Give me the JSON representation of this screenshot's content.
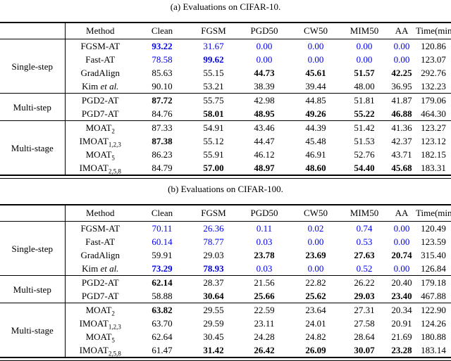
{
  "colors": {
    "highlight_blue": "#0000EE",
    "rule_black": "#000000",
    "background": "#ffffff"
  },
  "tables": [
    {
      "caption": "(a) Evaluations on CIFAR-10.",
      "columns": [
        "Method",
        "Clean",
        "FGSM",
        "PGD50",
        "CW50",
        "MIM50",
        "AA",
        "Time(min)"
      ],
      "groups": [
        {
          "label": "Single-step",
          "rows": [
            {
              "method": {
                "name": "FGSM-AT",
                "italic": "",
                "sub": ""
              },
              "cells": [
                {
                  "v": "93.22",
                  "s": "blue bold"
                },
                {
                  "v": "31.67",
                  "s": "blue"
                },
                {
                  "v": "0.00",
                  "s": "blue"
                },
                {
                  "v": "0.00",
                  "s": "blue"
                },
                {
                  "v": "0.00",
                  "s": "blue"
                },
                {
                  "v": "0.00",
                  "s": "blue"
                },
                {
                  "v": "120.86",
                  "s": ""
                }
              ]
            },
            {
              "method": {
                "name": "Fast-AT",
                "italic": "",
                "sub": ""
              },
              "cells": [
                {
                  "v": "78.58",
                  "s": "blue"
                },
                {
                  "v": "99.62",
                  "s": "blue bold"
                },
                {
                  "v": "0.00",
                  "s": "blue"
                },
                {
                  "v": "0.00",
                  "s": "blue"
                },
                {
                  "v": "0.00",
                  "s": "blue"
                },
                {
                  "v": "0.00",
                  "s": "blue"
                },
                {
                  "v": "123.07",
                  "s": ""
                }
              ]
            },
            {
              "method": {
                "name": "GradAlign",
                "italic": "",
                "sub": ""
              },
              "cells": [
                {
                  "v": "85.63",
                  "s": ""
                },
                {
                  "v": "55.15",
                  "s": ""
                },
                {
                  "v": "44.73",
                  "s": "bold"
                },
                {
                  "v": "45.61",
                  "s": "bold"
                },
                {
                  "v": "51.57",
                  "s": "bold"
                },
                {
                  "v": "42.25",
                  "s": "bold"
                },
                {
                  "v": "292.76",
                  "s": ""
                }
              ]
            },
            {
              "method": {
                "name": "Kim ",
                "italic": "et al.",
                "sub": ""
              },
              "cells": [
                {
                  "v": "90.10",
                  "s": ""
                },
                {
                  "v": "53.21",
                  "s": ""
                },
                {
                  "v": "38.39",
                  "s": ""
                },
                {
                  "v": "39.44",
                  "s": ""
                },
                {
                  "v": "48.00",
                  "s": ""
                },
                {
                  "v": "36.95",
                  "s": ""
                },
                {
                  "v": "132.23",
                  "s": ""
                }
              ]
            }
          ]
        },
        {
          "label": "Multi-step",
          "rows": [
            {
              "method": {
                "name": "PGD2-AT",
                "italic": "",
                "sub": ""
              },
              "cells": [
                {
                  "v": "87.72",
                  "s": "bold"
                },
                {
                  "v": "55.75",
                  "s": ""
                },
                {
                  "v": "42.98",
                  "s": ""
                },
                {
                  "v": "44.85",
                  "s": ""
                },
                {
                  "v": "51.81",
                  "s": ""
                },
                {
                  "v": "41.87",
                  "s": ""
                },
                {
                  "v": "179.06",
                  "s": ""
                }
              ]
            },
            {
              "method": {
                "name": "PGD7-AT",
                "italic": "",
                "sub": ""
              },
              "cells": [
                {
                  "v": "84.76",
                  "s": ""
                },
                {
                  "v": "58.01",
                  "s": "bold"
                },
                {
                  "v": "48.95",
                  "s": "bold"
                },
                {
                  "v": "49.26",
                  "s": "bold"
                },
                {
                  "v": "55.22",
                  "s": "bold"
                },
                {
                  "v": "46.88",
                  "s": "bold"
                },
                {
                  "v": "464.30",
                  "s": ""
                }
              ]
            }
          ]
        },
        {
          "label": "Multi-stage",
          "rows": [
            {
              "method": {
                "name": "MOAT",
                "italic": "",
                "sub": "2"
              },
              "cells": [
                {
                  "v": "87.33",
                  "s": ""
                },
                {
                  "v": "54.91",
                  "s": ""
                },
                {
                  "v": "43.46",
                  "s": ""
                },
                {
                  "v": "44.39",
                  "s": ""
                },
                {
                  "v": "51.42",
                  "s": ""
                },
                {
                  "v": "41.36",
                  "s": ""
                },
                {
                  "v": "123.27",
                  "s": ""
                }
              ]
            },
            {
              "method": {
                "name": "IMOAT",
                "italic": "",
                "sub": "1,2,3"
              },
              "cells": [
                {
                  "v": "87.38",
                  "s": "bold"
                },
                {
                  "v": "55.12",
                  "s": ""
                },
                {
                  "v": "44.47",
                  "s": ""
                },
                {
                  "v": "45.48",
                  "s": ""
                },
                {
                  "v": "51.53",
                  "s": ""
                },
                {
                  "v": "42.37",
                  "s": ""
                },
                {
                  "v": "123.12",
                  "s": ""
                }
              ]
            },
            {
              "method": {
                "name": "MOAT",
                "italic": "",
                "sub": "5"
              },
              "cells": [
                {
                  "v": "86.23",
                  "s": ""
                },
                {
                  "v": "55.91",
                  "s": ""
                },
                {
                  "v": "46.12",
                  "s": ""
                },
                {
                  "v": "46.91",
                  "s": ""
                },
                {
                  "v": "52.76",
                  "s": ""
                },
                {
                  "v": "43.71",
                  "s": ""
                },
                {
                  "v": "182.15",
                  "s": ""
                }
              ]
            },
            {
              "method": {
                "name": "IMOAT",
                "italic": "",
                "sub": "2,5,8"
              },
              "cells": [
                {
                  "v": "84.79",
                  "s": ""
                },
                {
                  "v": "57.00",
                  "s": "bold"
                },
                {
                  "v": "48.97",
                  "s": "bold"
                },
                {
                  "v": "48.60",
                  "s": "bold"
                },
                {
                  "v": "54.40",
                  "s": "bold"
                },
                {
                  "v": "45.68",
                  "s": "bold"
                },
                {
                  "v": "183.31",
                  "s": ""
                }
              ]
            }
          ]
        }
      ]
    },
    {
      "caption": "(b) Evaluations on CIFAR-100.",
      "columns": [
        "Method",
        "Clean",
        "FGSM",
        "PGD50",
        "CW50",
        "MIM50",
        "AA",
        "Time(min)"
      ],
      "groups": [
        {
          "label": "Single-step",
          "rows": [
            {
              "method": {
                "name": "FGSM-AT",
                "italic": "",
                "sub": ""
              },
              "cells": [
                {
                  "v": "70.11",
                  "s": "blue"
                },
                {
                  "v": "26.36",
                  "s": "blue"
                },
                {
                  "v": "0.11",
                  "s": "blue"
                },
                {
                  "v": "0.02",
                  "s": "blue"
                },
                {
                  "v": "0.74",
                  "s": "blue"
                },
                {
                  "v": "0.00",
                  "s": "blue"
                },
                {
                  "v": "120.49",
                  "s": ""
                }
              ]
            },
            {
              "method": {
                "name": "Fast-AT",
                "italic": "",
                "sub": ""
              },
              "cells": [
                {
                  "v": "60.14",
                  "s": "blue"
                },
                {
                  "v": "78.77",
                  "s": "blue"
                },
                {
                  "v": "0.03",
                  "s": "blue"
                },
                {
                  "v": "0.00",
                  "s": "blue"
                },
                {
                  "v": "0.53",
                  "s": "blue"
                },
                {
                  "v": "0.00",
                  "s": "blue"
                },
                {
                  "v": "123.59",
                  "s": ""
                }
              ]
            },
            {
              "method": {
                "name": "GradAlign",
                "italic": "",
                "sub": ""
              },
              "cells": [
                {
                  "v": "59.91",
                  "s": ""
                },
                {
                  "v": "29.03",
                  "s": ""
                },
                {
                  "v": "23.78",
                  "s": "bold"
                },
                {
                  "v": "23.69",
                  "s": "bold"
                },
                {
                  "v": "27.63",
                  "s": "bold"
                },
                {
                  "v": "20.74",
                  "s": "bold"
                },
                {
                  "v": "315.40",
                  "s": ""
                }
              ]
            },
            {
              "method": {
                "name": "Kim ",
                "italic": "et al.",
                "sub": ""
              },
              "cells": [
                {
                  "v": "73.29",
                  "s": "blue bold"
                },
                {
                  "v": "78.93",
                  "s": "blue bold"
                },
                {
                  "v": "0.03",
                  "s": "blue"
                },
                {
                  "v": "0.00",
                  "s": "blue"
                },
                {
                  "v": "0.52",
                  "s": "blue"
                },
                {
                  "v": "0.00",
                  "s": "blue"
                },
                {
                  "v": "126.84",
                  "s": ""
                }
              ]
            }
          ]
        },
        {
          "label": "Multi-step",
          "rows": [
            {
              "method": {
                "name": "PGD2-AT",
                "italic": "",
                "sub": ""
              },
              "cells": [
                {
                  "v": "62.14",
                  "s": "bold"
                },
                {
                  "v": "28.37",
                  "s": ""
                },
                {
                  "v": "21.56",
                  "s": ""
                },
                {
                  "v": "22.82",
                  "s": ""
                },
                {
                  "v": "26.22",
                  "s": ""
                },
                {
                  "v": "20.40",
                  "s": ""
                },
                {
                  "v": "179.18",
                  "s": ""
                }
              ]
            },
            {
              "method": {
                "name": "PGD7-AT",
                "italic": "",
                "sub": ""
              },
              "cells": [
                {
                  "v": "58.88",
                  "s": ""
                },
                {
                  "v": "30.64",
                  "s": "bold"
                },
                {
                  "v": "25.66",
                  "s": "bold"
                },
                {
                  "v": "25.62",
                  "s": "bold"
                },
                {
                  "v": "29.03",
                  "s": "bold"
                },
                {
                  "v": "23.40",
                  "s": "bold"
                },
                {
                  "v": "467.88",
                  "s": ""
                }
              ]
            }
          ]
        },
        {
          "label": "Multi-stage",
          "rows": [
            {
              "method": {
                "name": "MOAT",
                "italic": "",
                "sub": "2"
              },
              "cells": [
                {
                  "v": "63.82",
                  "s": "bold"
                },
                {
                  "v": "29.55",
                  "s": ""
                },
                {
                  "v": "22.59",
                  "s": ""
                },
                {
                  "v": "23.64",
                  "s": ""
                },
                {
                  "v": "27.31",
                  "s": ""
                },
                {
                  "v": "20.34",
                  "s": ""
                },
                {
                  "v": "122.90",
                  "s": ""
                }
              ]
            },
            {
              "method": {
                "name": "IMOAT",
                "italic": "",
                "sub": "1,2,3"
              },
              "cells": [
                {
                  "v": "63.70",
                  "s": ""
                },
                {
                  "v": "29.59",
                  "s": ""
                },
                {
                  "v": "23.11",
                  "s": ""
                },
                {
                  "v": "24.01",
                  "s": ""
                },
                {
                  "v": "27.58",
                  "s": ""
                },
                {
                  "v": "20.91",
                  "s": ""
                },
                {
                  "v": "124.26",
                  "s": ""
                }
              ]
            },
            {
              "method": {
                "name": "MOAT",
                "italic": "",
                "sub": "5"
              },
              "cells": [
                {
                  "v": "62.64",
                  "s": ""
                },
                {
                  "v": "30.45",
                  "s": ""
                },
                {
                  "v": "24.28",
                  "s": ""
                },
                {
                  "v": "24.82",
                  "s": ""
                },
                {
                  "v": "28.64",
                  "s": ""
                },
                {
                  "v": "21.69",
                  "s": ""
                },
                {
                  "v": "180.88",
                  "s": ""
                }
              ]
            },
            {
              "method": {
                "name": "IMOAT",
                "italic": "",
                "sub": "2,5,8"
              },
              "cells": [
                {
                  "v": "61.47",
                  "s": ""
                },
                {
                  "v": "31.42",
                  "s": "bold"
                },
                {
                  "v": "26.42",
                  "s": "bold"
                },
                {
                  "v": "26.09",
                  "s": "bold"
                },
                {
                  "v": "30.07",
                  "s": "bold"
                },
                {
                  "v": "23.28",
                  "s": "bold"
                },
                {
                  "v": "183.14",
                  "s": ""
                }
              ]
            }
          ]
        }
      ]
    }
  ]
}
